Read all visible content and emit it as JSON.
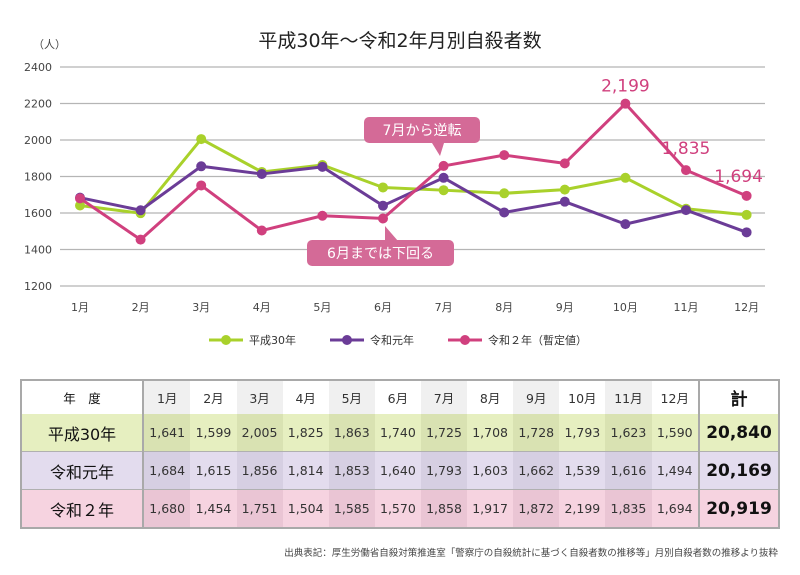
{
  "chart_data": {
    "type": "line",
    "title": "平成30年～令和2年月別自殺者数",
    "ylabel": "（人）",
    "xlabel": "",
    "ylim": [
      1200,
      2400
    ],
    "yticks": [
      1200,
      1400,
      1600,
      1800,
      2000,
      2200,
      2400
    ],
    "categories": [
      "1月",
      "2月",
      "3月",
      "4月",
      "5月",
      "6月",
      "7月",
      "8月",
      "9月",
      "10月",
      "11月",
      "12月"
    ],
    "grid": true,
    "legend_position": "bottom",
    "series": [
      {
        "name": "平成30年",
        "color": "#a9d12b",
        "values": [
          1641,
          1599,
          2005,
          1825,
          1863,
          1740,
          1725,
          1708,
          1728,
          1793,
          1623,
          1590
        ]
      },
      {
        "name": "令和元年",
        "color": "#6b3c97",
        "values": [
          1684,
          1615,
          1856,
          1814,
          1853,
          1640,
          1793,
          1603,
          1662,
          1539,
          1616,
          1494
        ]
      },
      {
        "name": "令和２年（暫定値）",
        "color": "#d0407e",
        "values": [
          1680,
          1454,
          1751,
          1504,
          1585,
          1570,
          1858,
          1917,
          1872,
          2199,
          1835,
          1694
        ]
      }
    ],
    "data_labels": [
      {
        "month": "10月",
        "text": "2,199"
      },
      {
        "month": "11月",
        "text": "1,835"
      },
      {
        "month": "12月",
        "text": "1,694"
      }
    ],
    "annotations": [
      {
        "text": "7月から逆転",
        "month": "7月"
      },
      {
        "text": "6月までは下回る",
        "month": "6月"
      }
    ]
  },
  "table": {
    "corner": "年　度",
    "headers": [
      "1月",
      "2月",
      "3月",
      "4月",
      "5月",
      "6月",
      "7月",
      "8月",
      "9月",
      "10月",
      "11月",
      "12月"
    ],
    "total_header": "計",
    "rows": [
      {
        "label": "平成30年",
        "values": [
          "1,641",
          "1,599",
          "2,005",
          "1,825",
          "1,863",
          "1,740",
          "1,725",
          "1,708",
          "1,728",
          "1,793",
          "1,623",
          "1,590"
        ],
        "total": "20,840"
      },
      {
        "label": "令和元年",
        "values": [
          "1,684",
          "1,615",
          "1,856",
          "1,814",
          "1,853",
          "1,640",
          "1,793",
          "1,603",
          "1,662",
          "1,539",
          "1,616",
          "1,494"
        ],
        "total": "20,169"
      },
      {
        "label": "令和２年",
        "values": [
          "1,680",
          "1,454",
          "1,751",
          "1,504",
          "1,585",
          "1,570",
          "1,858",
          "1,917",
          "1,872",
          "2,199",
          "1,835",
          "1,694"
        ],
        "total": "20,919"
      }
    ]
  },
  "source": "出典表記：厚生労働省自殺対策推進室「警察庁の自殺統計に基づく自殺者数の推移等」月別自殺者数の推移より抜粋"
}
